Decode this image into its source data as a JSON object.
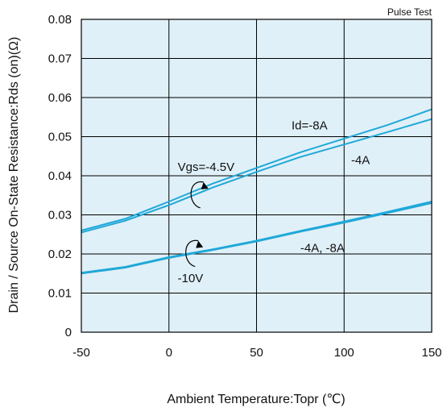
{
  "chart_data": {
    "type": "line",
    "title": "",
    "note": "Pulse Test",
    "xlabel": "Ambient Temperature:Topr (℃)",
    "ylabel": "Drain / Source On-State Resistance:Rds (on)(Ω)",
    "xlim": [
      -50,
      150
    ],
    "ylim": [
      0,
      0.08
    ],
    "x_ticks": [
      "-50",
      "0",
      "50",
      "100",
      "150"
    ],
    "y_ticks": [
      "0",
      "0.01",
      "0.02",
      "0.03",
      "0.04",
      "0.05",
      "0.06",
      "0.07",
      "0.08"
    ],
    "grid": true,
    "plot_background": "#e0f0f8",
    "line_color": "#1fa8d8",
    "series": [
      {
        "x": [
          -50,
          -25,
          0,
          25,
          50,
          75,
          100,
          125,
          150
        ],
        "y": [
          0.026,
          0.029,
          0.0334,
          0.038,
          0.042,
          0.046,
          0.0495,
          0.053,
          0.057
        ]
      },
      {
        "x": [
          -50,
          -25,
          0,
          25,
          50,
          75,
          100,
          125,
          150
        ],
        "y": [
          0.0255,
          0.0285,
          0.0325,
          0.037,
          0.041,
          0.0448,
          0.048,
          0.0512,
          0.0545
        ]
      },
      {
        "x": [
          -50,
          -25,
          0,
          25,
          50,
          75,
          100,
          125,
          150
        ],
        "y": [
          0.015,
          0.0165,
          0.019,
          0.021,
          0.0232,
          0.0257,
          0.028,
          0.0305,
          0.033
        ]
      },
      {
        "x": [
          -50,
          -25,
          0,
          25,
          50,
          75,
          100,
          125,
          150
        ],
        "y": [
          0.0152,
          0.0167,
          0.0192,
          0.0212,
          0.0234,
          0.0259,
          0.0283,
          0.0308,
          0.0334
        ]
      }
    ],
    "annotations": [
      {
        "text": "Id=-8A",
        "x": 70,
        "y": 0.0519
      },
      {
        "text": "-4A",
        "x": 104,
        "y": 0.043
      },
      {
        "text": "Vgs=-4.5V",
        "x": 5,
        "y": 0.0412
      },
      {
        "text": "-4A, -8A",
        "x": 75,
        "y": 0.0205
      },
      {
        "text": "-10V",
        "x": 5,
        "y": 0.0128
      }
    ]
  }
}
